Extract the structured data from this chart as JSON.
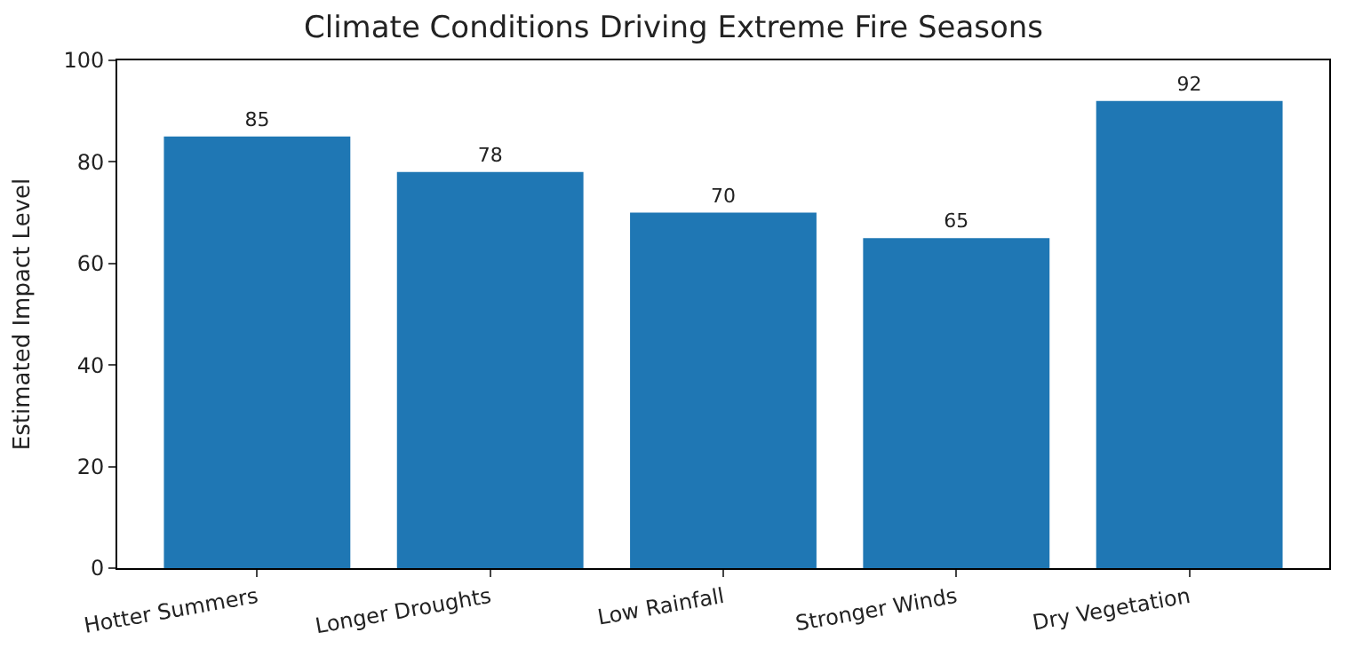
{
  "chart_data": {
    "type": "bar",
    "title": "Climate Conditions Driving Extreme Fire Seasons",
    "ylabel": "Estimated Impact Level",
    "categories": [
      "Hotter Summers",
      "Longer Droughts",
      "Low Rainfall",
      "Stronger Winds",
      "Dry Vegetation"
    ],
    "values": [
      85,
      78,
      70,
      65,
      92
    ],
    "color": "#1f77b4",
    "ylim": [
      0,
      100
    ],
    "yticks": [
      0,
      20,
      40,
      60,
      80,
      100
    ],
    "data_labels": true
  }
}
